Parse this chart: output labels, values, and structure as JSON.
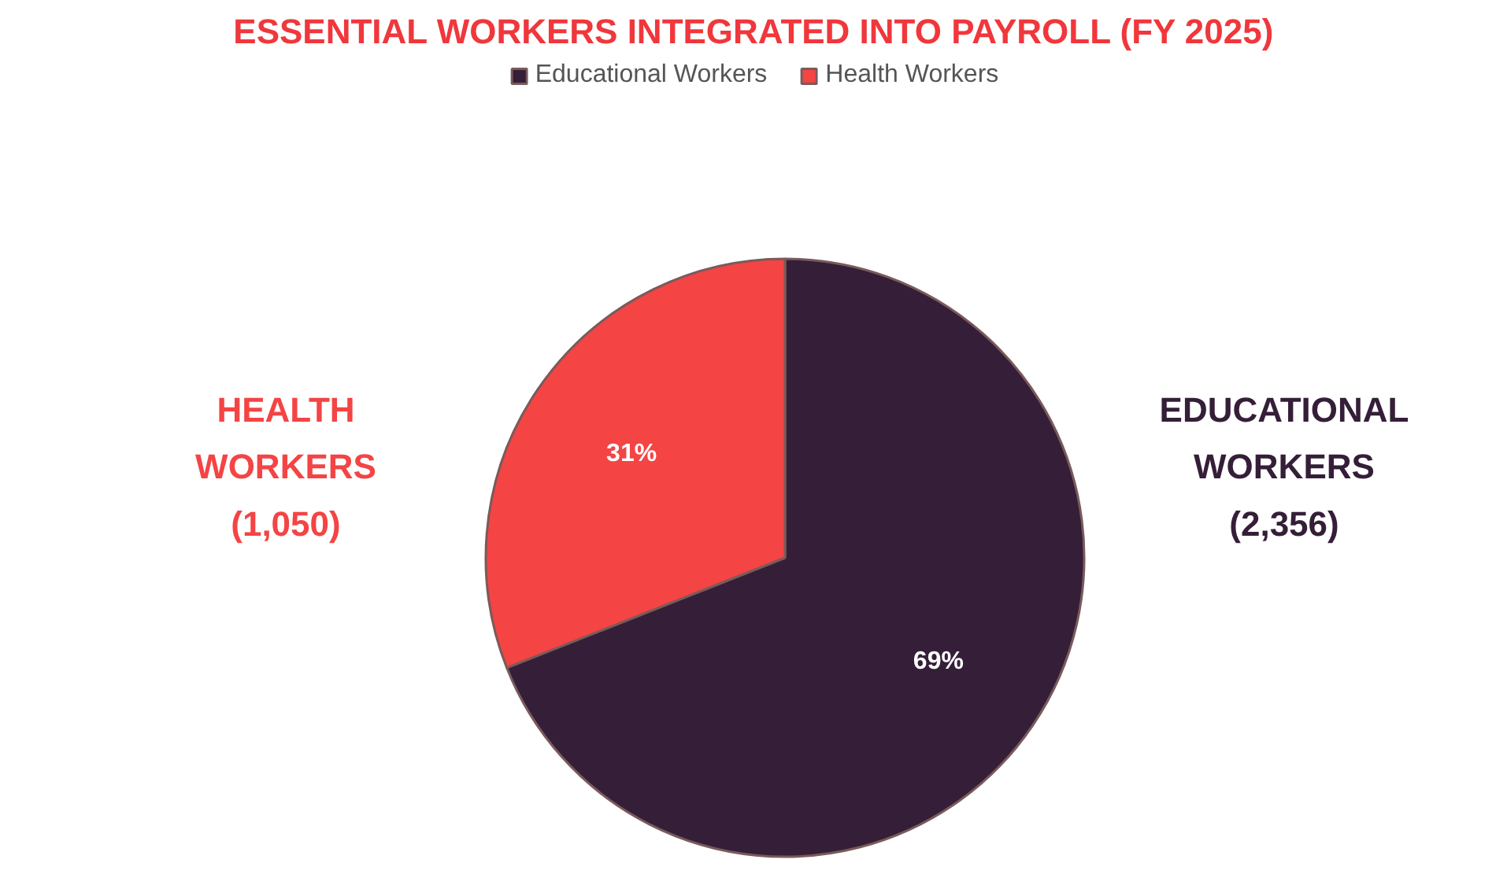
{
  "chart_data": {
    "type": "pie",
    "title": "ESSENTIAL WORKERS INTEGRATED INTO PAYROLL (FY 2025)",
    "categories": [
      "Educational Workers",
      "Health Workers"
    ],
    "values": [
      69,
      31
    ],
    "colors": [
      "#351e38",
      "#f44444"
    ],
    "value_labels": [
      "69%",
      "31%"
    ],
    "annotations": [
      "EDUCATIONAL\nWORKERS\n(2,356)",
      "HEALTH\nWORKERS\n(1,050)"
    ],
    "legend": "top"
  }
}
